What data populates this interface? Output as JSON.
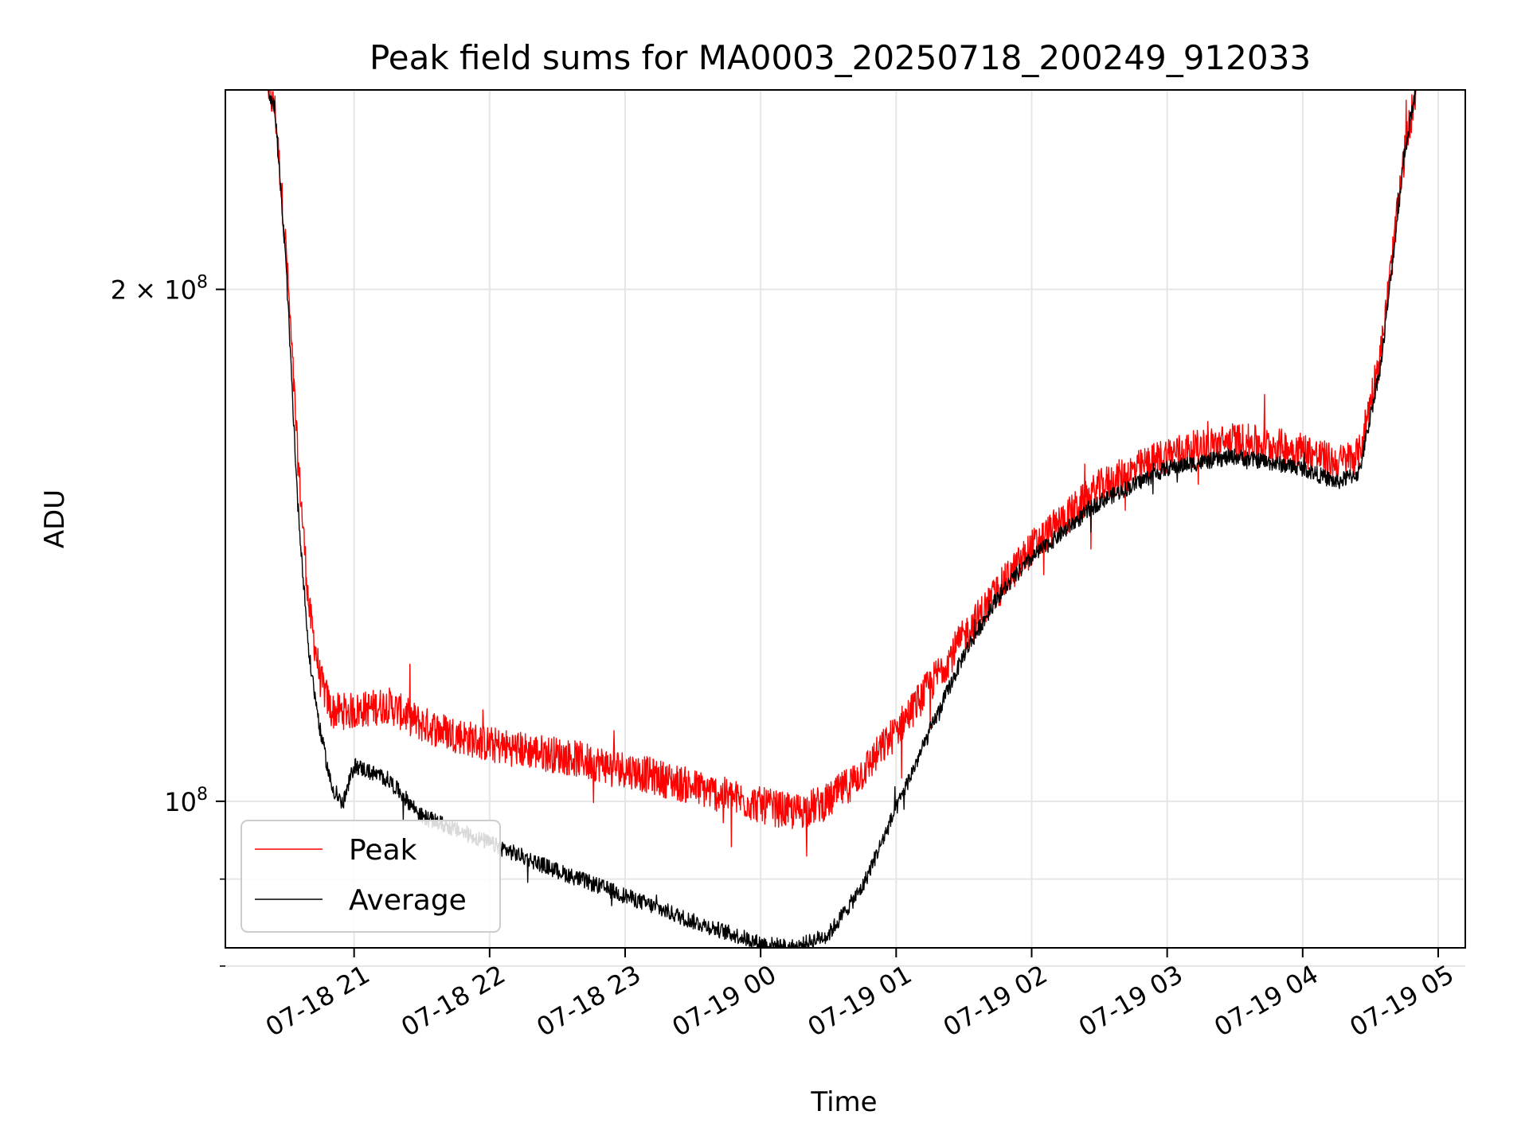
{
  "chart_data": {
    "type": "line",
    "title": "Peak field sums for MA0003_20250718_200249_912033",
    "xlabel": "Time",
    "ylabel": "ADU",
    "yscale": "log",
    "ylim": [
      82000000,
      262000000
    ],
    "xlim": [
      "2025-07-18 20:03",
      "2025-07-19 05:12"
    ],
    "grid": true,
    "legend_position": "bottom-left",
    "x_ticks": [
      {
        "value": "2025-07-18 21:00",
        "label": "07-18 21"
      },
      {
        "value": "2025-07-18 22:00",
        "label": "07-18 22"
      },
      {
        "value": "2025-07-18 23:00",
        "label": "07-18 23"
      },
      {
        "value": "2025-07-19 00:00",
        "label": "07-19 00"
      },
      {
        "value": "2025-07-19 01:00",
        "label": "07-19 01"
      },
      {
        "value": "2025-07-19 02:00",
        "label": "07-19 02"
      },
      {
        "value": "2025-07-19 03:00",
        "label": "07-19 03"
      },
      {
        "value": "2025-07-19 04:00",
        "label": "07-19 04"
      },
      {
        "value": "2025-07-19 05:00",
        "label": "07-19 05"
      }
    ],
    "y_ticks_major": [
      {
        "value": 100000000,
        "label": "10",
        "exp": "8"
      },
      {
        "value": 200000000,
        "label": "2 × 10",
        "exp": "8"
      }
    ],
    "y_ticks_minor": [
      90000000,
      80000000
    ],
    "series": [
      {
        "name": "Peak",
        "color": "#ff0000",
        "noise": 0.025,
        "points": [
          [
            "2025-07-18 20:03",
            262000000
          ],
          [
            "2025-07-18 20:22",
            262000000
          ],
          [
            "2025-07-18 20:25",
            255000000
          ],
          [
            "2025-07-18 20:30",
            210000000
          ],
          [
            "2025-07-18 20:35",
            160000000
          ],
          [
            "2025-07-18 20:40",
            130000000
          ],
          [
            "2025-07-18 20:45",
            118000000
          ],
          [
            "2025-07-18 20:50",
            113000000
          ],
          [
            "2025-07-18 21:00",
            113000000
          ],
          [
            "2025-07-18 21:15",
            114000000
          ],
          [
            "2025-07-18 21:30",
            111000000
          ],
          [
            "2025-07-18 22:00",
            108000000
          ],
          [
            "2025-07-18 22:30",
            106500000
          ],
          [
            "2025-07-18 23:00",
            104500000
          ],
          [
            "2025-07-18 23:30",
            102000000
          ],
          [
            "2025-07-19 00:00",
            99500000
          ],
          [
            "2025-07-19 00:15",
            98500000
          ],
          [
            "2025-07-19 00:30",
            100000000
          ],
          [
            "2025-07-19 00:45",
            104000000
          ],
          [
            "2025-07-19 01:00",
            110000000
          ],
          [
            "2025-07-19 01:15",
            117000000
          ],
          [
            "2025-07-19 01:30",
            125000000
          ],
          [
            "2025-07-19 01:45",
            133000000
          ],
          [
            "2025-07-19 02:00",
            141000000
          ],
          [
            "2025-07-19 02:30",
            153000000
          ],
          [
            "2025-07-19 03:00",
            160000000
          ],
          [
            "2025-07-19 03:30",
            163000000
          ],
          [
            "2025-07-19 04:00",
            161000000
          ],
          [
            "2025-07-19 04:15",
            158000000
          ],
          [
            "2025-07-19 04:25",
            160000000
          ],
          [
            "2025-07-19 04:35",
            185000000
          ],
          [
            "2025-07-19 04:45",
            240000000
          ],
          [
            "2025-07-19 04:50",
            262000000
          ],
          [
            "2025-07-19 05:12",
            262000000
          ]
        ]
      },
      {
        "name": "Average",
        "color": "#000000",
        "noise": 0.011,
        "points": [
          [
            "2025-07-18 20:03",
            262000000
          ],
          [
            "2025-07-18 20:22",
            262000000
          ],
          [
            "2025-07-18 20:25",
            255000000
          ],
          [
            "2025-07-18 20:30",
            205000000
          ],
          [
            "2025-07-18 20:35",
            150000000
          ],
          [
            "2025-07-18 20:40",
            122000000
          ],
          [
            "2025-07-18 20:45",
            110000000
          ],
          [
            "2025-07-18 20:50",
            102000000
          ],
          [
            "2025-07-18 20:55",
            99500000
          ],
          [
            "2025-07-18 21:00",
            105000000
          ],
          [
            "2025-07-18 21:15",
            103000000
          ],
          [
            "2025-07-18 21:30",
            98000000
          ],
          [
            "2025-07-18 22:00",
            94500000
          ],
          [
            "2025-07-18 22:30",
            91000000
          ],
          [
            "2025-07-18 23:00",
            88000000
          ],
          [
            "2025-07-18 23:30",
            85000000
          ],
          [
            "2025-07-19 00:00",
            82500000
          ],
          [
            "2025-07-19 00:15",
            82000000
          ],
          [
            "2025-07-19 00:30",
            83500000
          ],
          [
            "2025-07-19 00:45",
            89000000
          ],
          [
            "2025-07-19 01:00",
            99000000
          ],
          [
            "2025-07-19 01:15",
            110000000
          ],
          [
            "2025-07-19 01:30",
            122000000
          ],
          [
            "2025-07-19 01:45",
            132000000
          ],
          [
            "2025-07-19 02:00",
            139000000
          ],
          [
            "2025-07-19 02:30",
            150000000
          ],
          [
            "2025-07-19 03:00",
            157000000
          ],
          [
            "2025-07-19 03:30",
            159500000
          ],
          [
            "2025-07-19 04:00",
            157000000
          ],
          [
            "2025-07-19 04:15",
            154000000
          ],
          [
            "2025-07-19 04:25",
            156000000
          ],
          [
            "2025-07-19 04:35",
            182000000
          ],
          [
            "2025-07-19 04:45",
            240000000
          ],
          [
            "2025-07-19 04:50",
            262000000
          ],
          [
            "2025-07-19 05:12",
            262000000
          ]
        ]
      }
    ]
  }
}
